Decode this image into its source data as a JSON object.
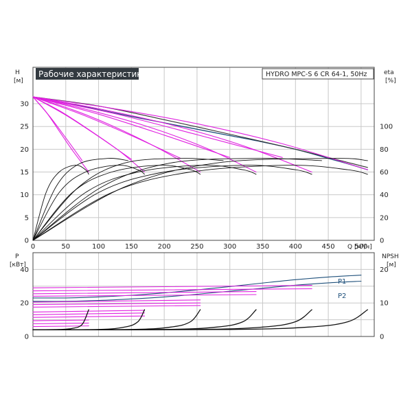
{
  "chart_data": [
    {
      "type": "line",
      "title": "Рабочие характеристики",
      "model": "HYDRO MPC-S 6 CR 64-1, 50Hz",
      "xlabel": "Q [м³/ч]",
      "xlabel_q": "Q",
      "xlabel_unit": "[м³/ч]",
      "ylabel_left": "H",
      "ylabel_left_unit": "[м]",
      "ylabel_right": "eta",
      "ylabel_right_unit": "[%]",
      "xlim": [
        0,
        520
      ],
      "ylim_left": [
        0,
        38
      ],
      "ylim_right": [
        0,
        152
      ],
      "grid": true,
      "x_ticks": [
        "0",
        "50",
        "100",
        "150",
        "200",
        "250",
        "300",
        "350",
        "400",
        "450",
        "500"
      ],
      "y_ticks_left": [
        "0",
        "5",
        "10",
        "15",
        "20",
        "25",
        "30"
      ],
      "y_ticks_right": [
        "0",
        "20",
        "40",
        "60",
        "80",
        "100"
      ],
      "series": [
        {
          "role": "head-max",
          "color": "#1d4f7a",
          "x": [
            0,
            50,
            100,
            150,
            200,
            250,
            300,
            350,
            400,
            450,
            480,
            510
          ],
          "y": [
            31.5,
            30.2,
            28.7,
            27.2,
            25.8,
            24.4,
            23.0,
            21.6,
            20.0,
            18.0,
            16.8,
            15.5
          ]
        },
        {
          "role": "head",
          "color": "#333333",
          "x": [
            0,
            100,
            200,
            300,
            400,
            510
          ],
          "y": [
            31.5,
            29.5,
            26.5,
            23.3,
            20.0,
            16.0
          ]
        },
        {
          "role": "head",
          "color": "#e020e0",
          "x": [
            0,
            20,
            40,
            60,
            85
          ],
          "y": [
            31.5,
            28.2,
            24.0,
            19.8,
            15.0
          ]
        },
        {
          "role": "head",
          "color": "#e020e0",
          "x": [
            0,
            40,
            80,
            130,
            170
          ],
          "y": [
            31.5,
            28.5,
            24.8,
            19.8,
            15.0
          ]
        },
        {
          "role": "head",
          "color": "#e020e0",
          "x": [
            0,
            60,
            120,
            190,
            255
          ],
          "y": [
            31.5,
            28.7,
            25.2,
            20.3,
            15.0
          ]
        },
        {
          "role": "head",
          "color": "#e020e0",
          "x": [
            0,
            80,
            170,
            260,
            340
          ],
          "y": [
            31.5,
            28.8,
            25.2,
            20.5,
            15.0
          ]
        },
        {
          "role": "head",
          "color": "#e020e0",
          "x": [
            0,
            100,
            210,
            320,
            425
          ],
          "y": [
            31.5,
            28.9,
            25.4,
            20.8,
            15.0
          ]
        },
        {
          "role": "head",
          "color": "#e020e0",
          "x": [
            0,
            120,
            250,
            380,
            510
          ],
          "y": [
            31.5,
            29.0,
            25.6,
            21.2,
            15.5
          ]
        },
        {
          "role": "head",
          "color": "#e020e0",
          "x": [
            0,
            25,
            50,
            75
          ],
          "y": [
            31.5,
            27.3,
            22.5,
            17.5
          ]
        },
        {
          "role": "head",
          "color": "#e020e0",
          "x": [
            0,
            50,
            100,
            150
          ],
          "y": [
            31.5,
            27.5,
            22.8,
            17.8
          ]
        },
        {
          "role": "head",
          "color": "#e020e0",
          "x": [
            0,
            75,
            150,
            225
          ],
          "y": [
            31.5,
            27.6,
            23.0,
            18.0
          ]
        },
        {
          "role": "head",
          "color": "#e020e0",
          "x": [
            0,
            100,
            200,
            300
          ],
          "y": [
            31.5,
            27.7,
            23.1,
            18.2
          ]
        },
        {
          "role": "head",
          "color": "#e020e0",
          "x": [
            0,
            125,
            250,
            380
          ],
          "y": [
            31.5,
            27.8,
            23.2,
            18.2
          ]
        },
        {
          "role": "eta",
          "color": "#111111",
          "x": [
            0,
            20,
            40,
            65,
            80,
            85
          ],
          "y": [
            0,
            42,
            60,
            66,
            62,
            58
          ]
        },
        {
          "role": "eta",
          "color": "#111111",
          "x": [
            0,
            40,
            80,
            130,
            160,
            170
          ],
          "y": [
            0,
            42,
            60,
            66,
            62,
            58
          ]
        },
        {
          "role": "eta",
          "color": "#111111",
          "x": [
            0,
            60,
            120,
            195,
            240,
            255
          ],
          "y": [
            0,
            42,
            60,
            66,
            62,
            58
          ]
        },
        {
          "role": "eta",
          "color": "#111111",
          "x": [
            0,
            80,
            160,
            260,
            320,
            340
          ],
          "y": [
            0,
            42,
            60,
            66,
            62,
            58
          ]
        },
        {
          "role": "eta",
          "color": "#111111",
          "x": [
            0,
            100,
            200,
            325,
            400,
            425
          ],
          "y": [
            0,
            42,
            60,
            66,
            62,
            58
          ]
        },
        {
          "role": "eta",
          "color": "#111111",
          "x": [
            0,
            120,
            240,
            390,
            480,
            510
          ],
          "y": [
            0,
            42,
            60,
            66,
            62,
            58
          ]
        },
        {
          "role": "eta",
          "color": "#111111",
          "x": [
            0,
            35,
            70,
            115,
            145
          ],
          "y": [
            0,
            47,
            67,
            72,
            70
          ]
        },
        {
          "role": "eta",
          "color": "#111111",
          "x": [
            0,
            70,
            140,
            230,
            290
          ],
          "y": [
            0,
            47,
            68,
            72,
            70
          ]
        },
        {
          "role": "eta",
          "color": "#111111",
          "x": [
            0,
            105,
            210,
            345,
            440
          ],
          "y": [
            0,
            47,
            68,
            72,
            70
          ]
        },
        {
          "role": "eta",
          "color": "#111111",
          "x": [
            0,
            140,
            280,
            460,
            510
          ],
          "y": [
            0,
            47,
            68,
            72,
            70
          ]
        }
      ]
    },
    {
      "type": "line",
      "ylabel_left": "P",
      "ylabel_left_unit": "[кВт]",
      "ylabel_right": "NPSH",
      "ylabel_right_unit": "[м]",
      "xlim": [
        0,
        520
      ],
      "ylim_left": [
        0,
        50
      ],
      "ylim_right": [
        0,
        25
      ],
      "grid": true,
      "y_ticks_left": [
        "0",
        "20",
        "40"
      ],
      "y_ticks_right": [
        "0",
        "10",
        "20"
      ],
      "labels": {
        "p1": "P1",
        "p2": "P2"
      },
      "series": [
        {
          "name": "P1",
          "color": "#1d4f7a",
          "x": [
            0,
            50,
            100,
            150,
            200,
            250,
            300,
            350,
            400,
            450,
            500
          ],
          "y": [
            23,
            23,
            23.6,
            24.6,
            26,
            27.8,
            29.8,
            31.9,
            33.9,
            35.5,
            36.6
          ]
        },
        {
          "name": "P2",
          "color": "#1d4f7a",
          "x": [
            0,
            50,
            100,
            150,
            200,
            250,
            300,
            350,
            400,
            450,
            500
          ],
          "y": [
            21,
            21,
            21.5,
            22.4,
            23.6,
            25.2,
            27,
            28.8,
            30.6,
            32,
            33
          ]
        },
        {
          "role": "power",
          "color": "#e020e0",
          "x": [
            0,
            425
          ],
          "y": [
            29,
            30.5
          ]
        },
        {
          "role": "power",
          "color": "#e020e0",
          "x": [
            0,
            425
          ],
          "y": [
            27.2,
            28.5
          ]
        },
        {
          "role": "power",
          "color": "#e020e0",
          "x": [
            0,
            340
          ],
          "y": [
            25.5,
            26.8
          ]
        },
        {
          "role": "power",
          "color": "#e020e0",
          "x": [
            0,
            340
          ],
          "y": [
            24,
            25
          ]
        },
        {
          "role": "power",
          "color": "#e020e0",
          "x": [
            0,
            255
          ],
          "y": [
            20.5,
            21.8
          ]
        },
        {
          "role": "power",
          "color": "#e020e0",
          "x": [
            0,
            255
          ],
          "y": [
            19,
            20
          ]
        },
        {
          "role": "power",
          "color": "#e020e0",
          "x": [
            0,
            255
          ],
          "y": [
            17.5,
            18.5
          ]
        },
        {
          "role": "power",
          "color": "#e020e0",
          "x": [
            0,
            170
          ],
          "y": [
            14.6,
            15.6
          ]
        },
        {
          "role": "power",
          "color": "#e020e0",
          "x": [
            0,
            170
          ],
          "y": [
            13,
            14
          ]
        },
        {
          "role": "power",
          "color": "#e020e0",
          "x": [
            0,
            170
          ],
          "y": [
            11.4,
            12.2
          ]
        },
        {
          "role": "power",
          "color": "#e020e0",
          "x": [
            0,
            85
          ],
          "y": [
            9.4,
            9.8
          ]
        },
        {
          "role": "power",
          "color": "#e020e0",
          "x": [
            0,
            85
          ],
          "y": [
            7.6,
            8
          ]
        },
        {
          "role": "power",
          "color": "#e020e0",
          "x": [
            0,
            85
          ],
          "y": [
            5.9,
            6.3
          ]
        },
        {
          "role": "npsh",
          "color": "#111111",
          "x": [
            0,
            40,
            60,
            75,
            85
          ],
          "y": [
            2.0,
            2.1,
            2.4,
            3.6,
            8.0
          ]
        },
        {
          "role": "npsh",
          "color": "#111111",
          "x": [
            0,
            100,
            140,
            160,
            170
          ],
          "y": [
            2.0,
            2.1,
            2.8,
            4.4,
            8.0
          ]
        },
        {
          "role": "npsh",
          "color": "#111111",
          "x": [
            0,
            150,
            210,
            240,
            255
          ],
          "y": [
            2.0,
            2.1,
            2.8,
            4.4,
            8.0
          ]
        },
        {
          "role": "npsh",
          "color": "#111111",
          "x": [
            0,
            200,
            280,
            320,
            340
          ],
          "y": [
            2.0,
            2.1,
            2.8,
            4.4,
            8.0
          ]
        },
        {
          "role": "npsh",
          "color": "#111111",
          "x": [
            0,
            250,
            350,
            400,
            425
          ],
          "y": [
            2.0,
            2.1,
            2.8,
            4.4,
            8.0
          ]
        },
        {
          "role": "npsh",
          "color": "#111111",
          "x": [
            0,
            300,
            420,
            480,
            510
          ],
          "y": [
            2.0,
            2.1,
            2.8,
            4.4,
            8.0
          ]
        }
      ]
    }
  ]
}
